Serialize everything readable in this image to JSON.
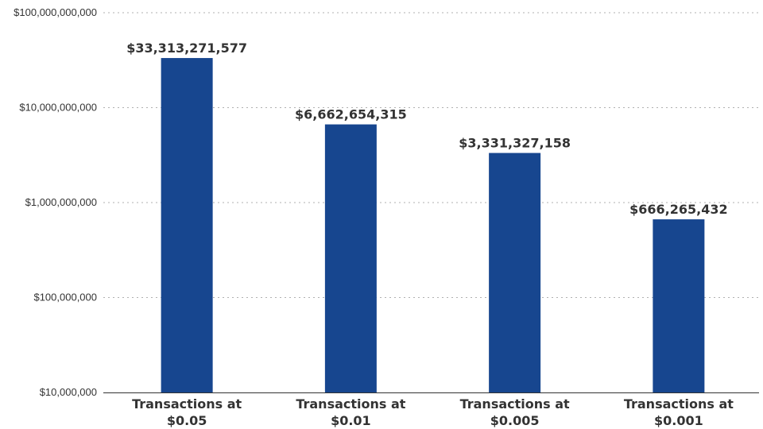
{
  "chart_data": {
    "type": "bar",
    "scale": "log",
    "title": "",
    "xlabel": "",
    "ylabel": "",
    "categories": [
      [
        "Transactions at",
        "$0.05"
      ],
      [
        "Transactions at",
        "$0.01"
      ],
      [
        "Transactions at",
        "$0.005"
      ],
      [
        "Transactions at",
        "$0.001"
      ]
    ],
    "values": [
      33313271577,
      6662654315,
      3331327158,
      666265432
    ],
    "value_labels": [
      "$33,313,271,577",
      "$6,662,654,315",
      "$3,331,327,158",
      "$666,265,432"
    ],
    "ylim": [
      10000000,
      100000000000
    ],
    "yticks": [
      10000000,
      100000000,
      1000000000,
      10000000000,
      100000000000
    ],
    "ytick_labels": [
      "$10,000,000",
      "$100,000,000",
      "$1,000,000,000",
      "$10,000,000,000",
      "$100,000,000,000"
    ],
    "grid": true,
    "bar_color": "#17468F"
  }
}
